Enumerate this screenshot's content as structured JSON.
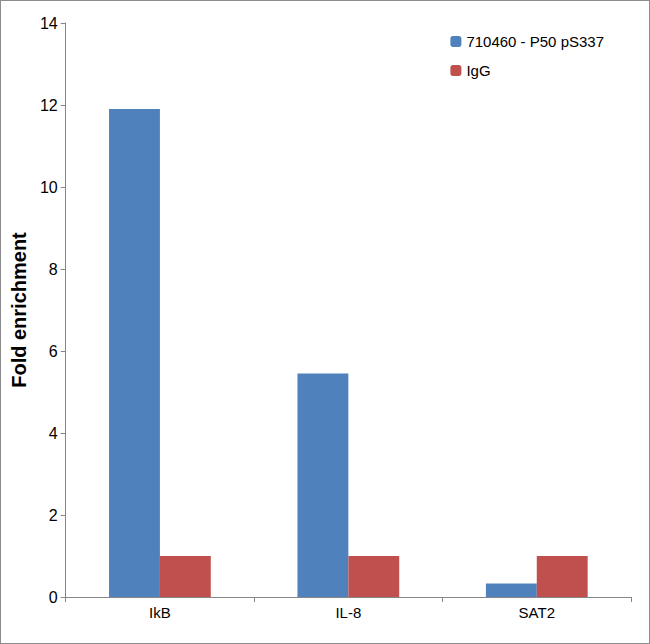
{
  "chart_data": {
    "type": "bar",
    "categories": [
      "IkB",
      "IL-8",
      "SAT2"
    ],
    "series": [
      {
        "name": "710460 - P50 pS337",
        "color": "#4f81bd",
        "values": [
          11.9,
          5.45,
          0.33
        ]
      },
      {
        "name": "IgG",
        "color": "#c0504d",
        "values": [
          1,
          1,
          1
        ]
      }
    ],
    "y_label": "Fold enrichment",
    "ylim": [
      0,
      14
    ],
    "yticks": [
      0,
      2,
      4,
      6,
      8,
      10,
      12,
      14
    ],
    "grid": false,
    "legend": "top-right"
  }
}
